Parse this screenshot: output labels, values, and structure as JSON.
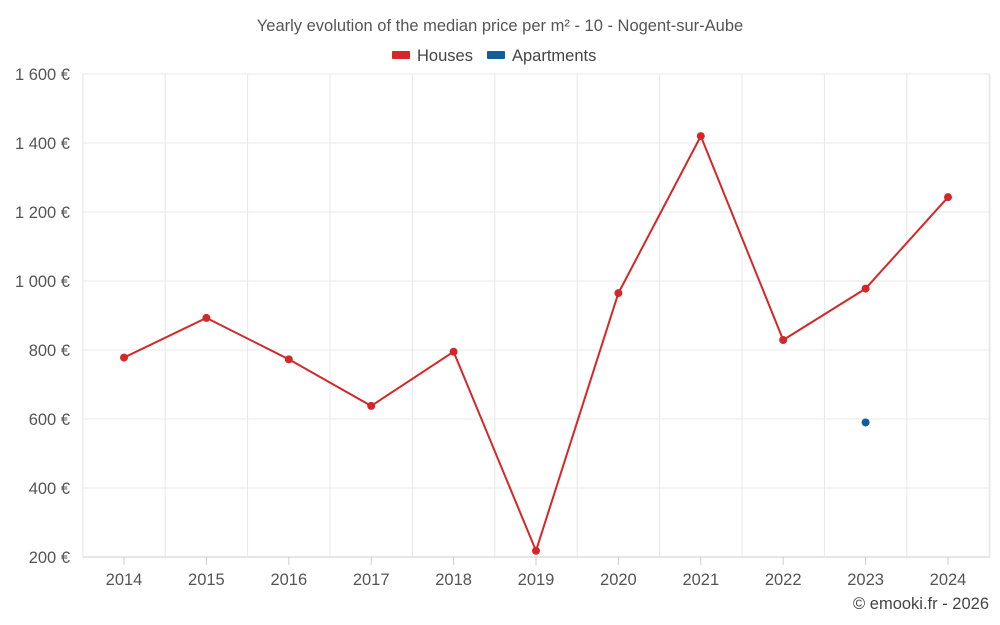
{
  "chart_data": {
    "type": "line",
    "title": "Yearly evolution of the median price per m² - 10 - Nogent-sur-Aube",
    "categories": [
      "2014",
      "2015",
      "2016",
      "2017",
      "2018",
      "2019",
      "2020",
      "2021",
      "2022",
      "2023",
      "2024"
    ],
    "series": [
      {
        "name": "Houses",
        "color": "#d62728",
        "values": [
          778,
          893,
          773,
          638,
          795,
          218,
          965,
          1420,
          829,
          978,
          1243
        ]
      },
      {
        "name": "Apartments",
        "color": "#0e5f9b",
        "values": [
          null,
          null,
          null,
          null,
          null,
          null,
          null,
          null,
          null,
          590,
          null
        ]
      }
    ],
    "y_ticks": [
      200,
      400,
      600,
      800,
      1000,
      1200,
      1400,
      1600
    ],
    "y_tick_labels": [
      "200 €",
      "400 €",
      "600 €",
      "800 €",
      "1 000 €",
      "1 200 €",
      "1 400 €",
      "1 600 €"
    ],
    "ylim": [
      200,
      1600
    ],
    "xlabel": "",
    "ylabel": "",
    "grid": true,
    "legend_position": "top-center"
  },
  "credit": "© emooki.fr - 2026"
}
